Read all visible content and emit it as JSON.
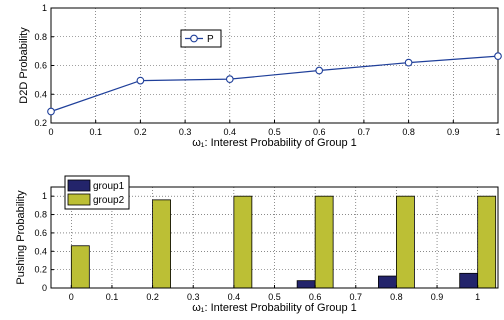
{
  "chart_data": [
    {
      "type": "line",
      "xlabel": "ω₁: Interest Probability of Group 1",
      "ylabel": "D2D Probability",
      "xlim": [
        0,
        1
      ],
      "ylim": [
        0.2,
        1
      ],
      "xticks": [
        "0",
        "0.1",
        "0.2",
        "0.3",
        "0.4",
        "0.5",
        "0.6",
        "0.7",
        "0.8",
        "0.9",
        "1"
      ],
      "yticks": [
        "0.2",
        "0.4",
        "0.6",
        "0.8",
        "1"
      ],
      "grid": true,
      "legend_position": "top-left",
      "series": [
        {
          "name": "P",
          "color": "#1f3f9a",
          "marker": "circle",
          "x": [
            0,
            0.2,
            0.4,
            0.6,
            0.8,
            1.0
          ],
          "y": [
            0.28,
            0.495,
            0.505,
            0.565,
            0.62,
            0.665
          ]
        }
      ]
    },
    {
      "type": "bar",
      "xlabel": "ω₁: Interest Probability of Group 1",
      "ylabel": "Pushing Probability",
      "xlim": [
        -0.05,
        1.05
      ],
      "ylim": [
        0,
        1.1
      ],
      "xticks": [
        "0",
        "0.1",
        "0.2",
        "0.3",
        "0.4",
        "0.5",
        "0.6",
        "0.7",
        "0.8",
        "0.9",
        "1"
      ],
      "yticks": [
        "0",
        "0.2",
        "0.4",
        "0.6",
        "0.8",
        "1"
      ],
      "grid": true,
      "legend_position": "top-left",
      "categories": [
        0,
        0.2,
        0.4,
        0.6,
        0.8,
        1.0
      ],
      "series": [
        {
          "name": "group1",
          "color": "#23246b",
          "values": [
            0,
            0,
            0,
            0.08,
            0.13,
            0.16
          ]
        },
        {
          "name": "group2",
          "color": "#bcbf35",
          "values": [
            0.46,
            0.96,
            1.0,
            1.0,
            1.0,
            1.0
          ]
        }
      ]
    }
  ]
}
